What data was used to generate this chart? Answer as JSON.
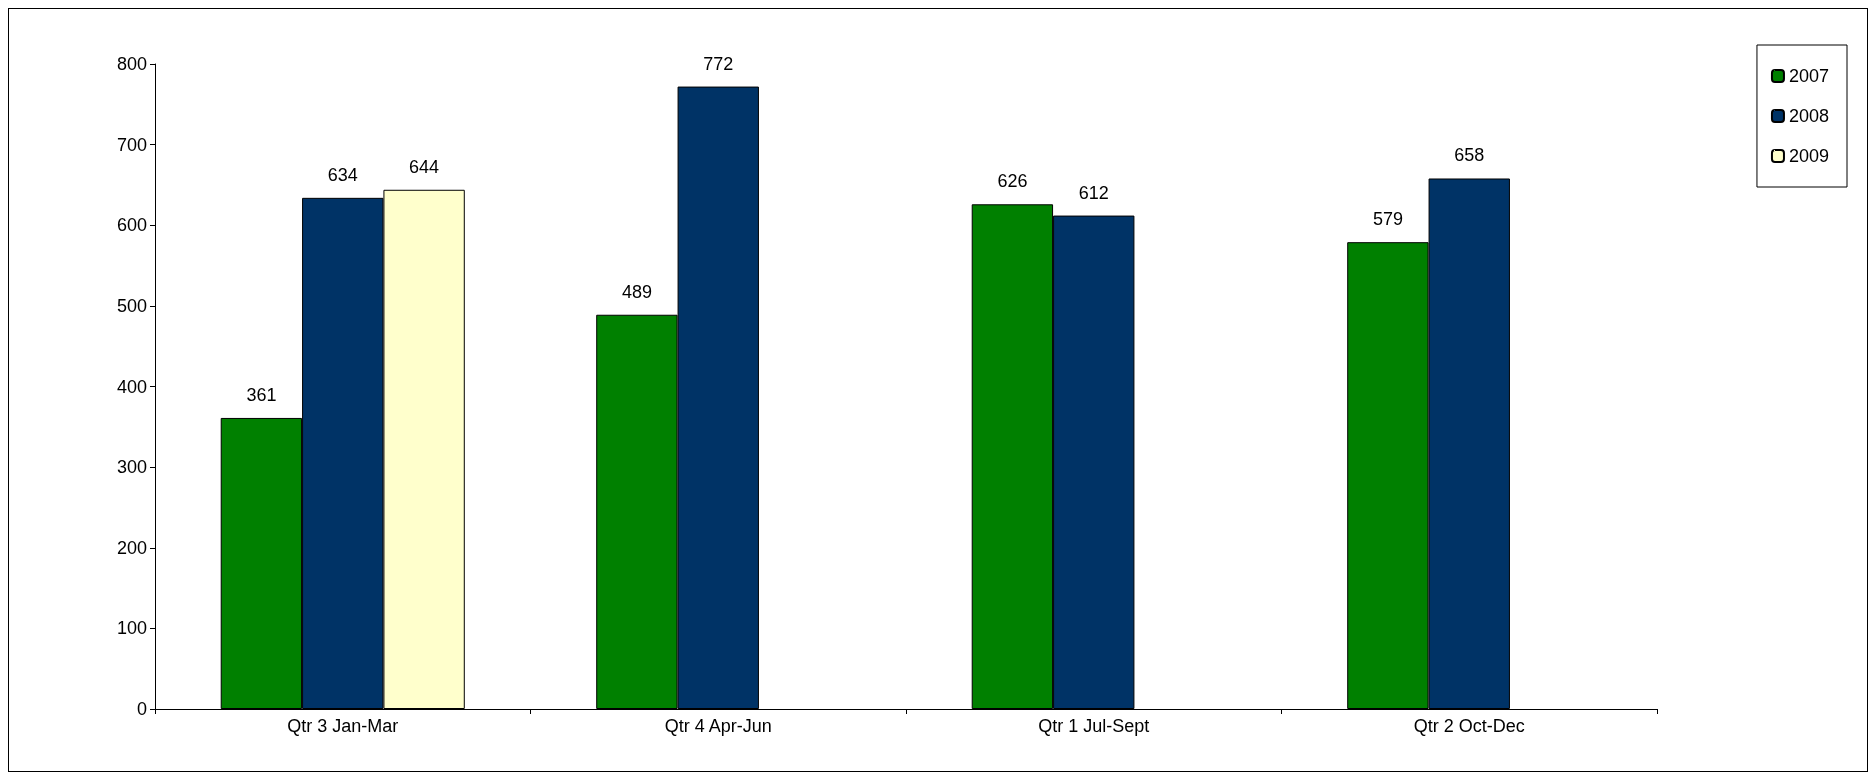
{
  "chart_data": {
    "type": "bar",
    "categories": [
      "Qtr 3 Jan-Mar",
      "Qtr 4 Apr-Jun",
      "Qtr 1 Jul-Sept",
      "Qtr 2 Oct-Dec"
    ],
    "series": [
      {
        "name": "2007",
        "color": "#008000",
        "values": [
          361,
          489,
          626,
          579
        ]
      },
      {
        "name": "2008",
        "color": "#003366",
        "values": [
          634,
          772,
          612,
          658
        ]
      },
      {
        "name": "2009",
        "color": "#ffffcc",
        "values": [
          644,
          null,
          null,
          null
        ]
      }
    ],
    "ylim": [
      0,
      800
    ],
    "yticks": [
      0,
      100,
      200,
      300,
      400,
      500,
      600,
      700,
      800
    ],
    "grid": false,
    "legend": "top right",
    "data_labels": true
  }
}
